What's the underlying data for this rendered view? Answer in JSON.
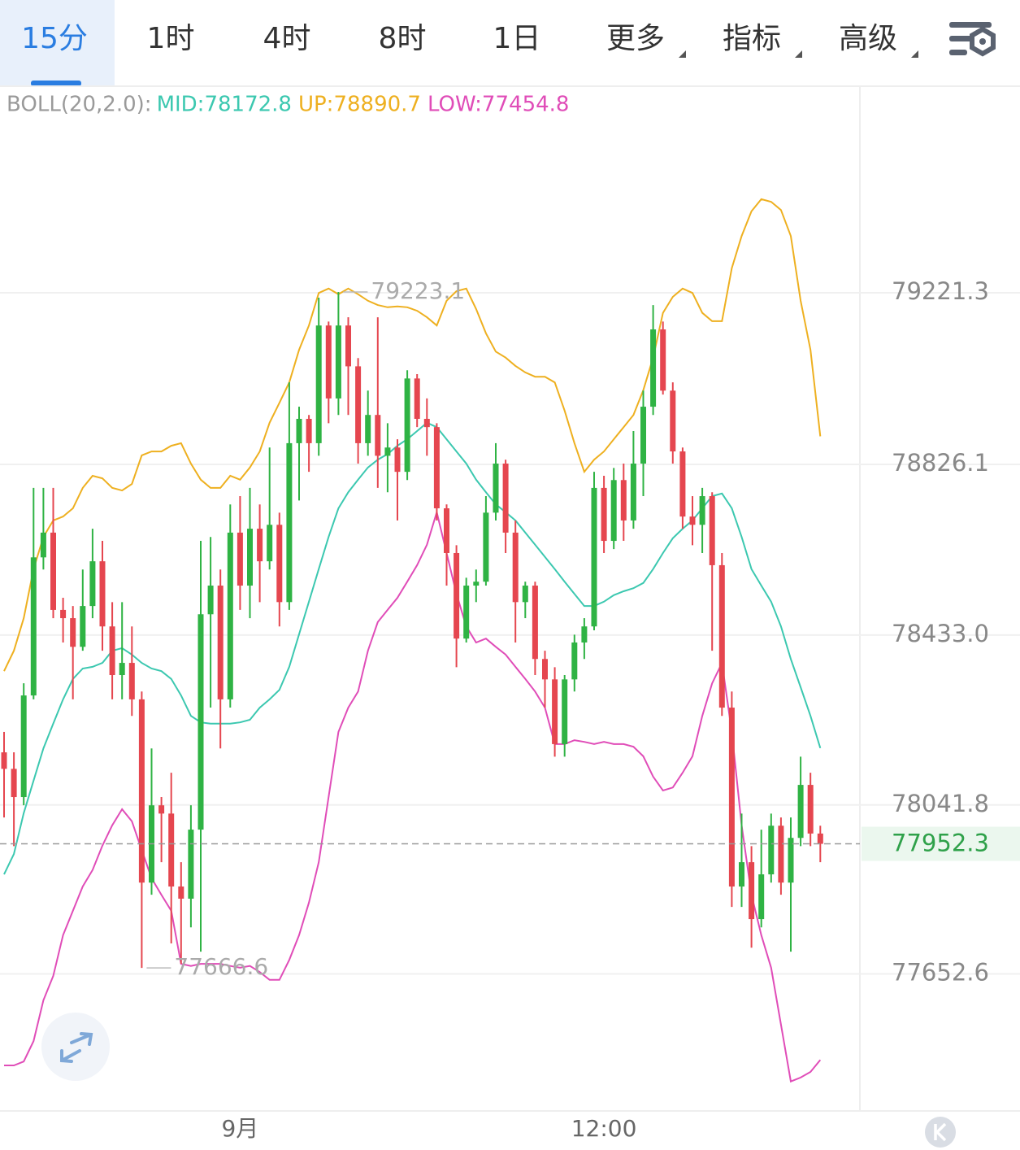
{
  "tabs": [
    "15分",
    "1时",
    "4时",
    "8时",
    "1日",
    "更多",
    "指标",
    "高级"
  ],
  "chart_data": {
    "type": "candlestick",
    "legend_title": "BOLL(20,2.0):",
    "categories": [
      null,
      null,
      null,
      null,
      null,
      null,
      null,
      null,
      null,
      null,
      null,
      null,
      null,
      null,
      null,
      null,
      null,
      null,
      null,
      null,
      null,
      null,
      null,
      null,
      "9月",
      null,
      null,
      null,
      null,
      null,
      null,
      null,
      null,
      null,
      null,
      null,
      null,
      null,
      null,
      null,
      null,
      null,
      null,
      null,
      null,
      null,
      null,
      null,
      null,
      null,
      null,
      null,
      null,
      null,
      null,
      null,
      null,
      null,
      null,
      null,
      null,
      "12:00",
      null,
      null,
      null,
      null,
      null,
      null,
      null,
      null,
      null,
      null,
      null,
      null,
      null,
      null,
      null,
      null,
      null,
      null,
      null,
      null,
      null,
      null
    ],
    "open": [
      78163,
      78125,
      78060,
      78294,
      78612,
      78669,
      78491,
      78472,
      78406,
      78500,
      78603,
      78453,
      78341,
      78369,
      78285,
      77863,
      78041,
      78022,
      77854,
      77826,
      77985,
      78481,
      78547,
      78285,
      78669,
      78547,
      78678,
      78603,
      78687,
      78509,
      78875,
      78931,
      78875,
      79146,
      78978,
      79146,
      79052,
      78875,
      78940,
      78846,
      78865,
      78809,
      79024,
      78931,
      78912,
      78725,
      78622,
      78425,
      78547,
      78556,
      78715,
      78828,
      78669,
      78509,
      78547,
      78378,
      78331,
      78182,
      78331,
      78416,
      78453,
      78772,
      78650,
      78790,
      78697,
      78828,
      78959,
      79137,
      78996,
      78856,
      78706,
      78687,
      78753,
      78594,
      78266,
      77854,
      77910,
      77779,
      77882,
      77994,
      77863,
      77966,
      78088,
      77976
    ],
    "high": [
      78210,
      78163,
      78322,
      78772,
      78772,
      78772,
      78519,
      78500,
      78584,
      78678,
      78650,
      78509,
      78509,
      78453,
      78303,
      78172,
      78060,
      78116,
      77910,
      78041,
      78650,
      78659,
      78584,
      78734,
      78753,
      78772,
      78734,
      78865,
      78715,
      79015,
      78959,
      78940,
      79210,
      79155,
      79223.1,
      79165,
      79071,
      78996,
      79165,
      78921,
      78884,
      79043,
      79034,
      78978,
      78921,
      78734,
      78640,
      78565,
      78584,
      78753,
      78875,
      78837,
      78697,
      78556,
      78556,
      78397,
      78359,
      78341,
      78434,
      78472,
      78809,
      78800,
      78818,
      78828,
      78903,
      78996,
      79193,
      79155,
      79015,
      78865,
      78753,
      78772,
      78762,
      78622,
      78303,
      78022,
      77947,
      77985,
      78022,
      78013,
      78013,
      78153,
      78116,
      77994
    ],
    "low": [
      78013,
      77947,
      78041,
      78285,
      78584,
      78472,
      78416,
      78285,
      78397,
      78472,
      78397,
      78285,
      78285,
      78247,
      77666.6,
      77835,
      77910,
      77723,
      77676,
      77760,
      77704,
      78266,
      78172,
      78266,
      78491,
      78472,
      78509,
      78584,
      78453,
      78491,
      78743,
      78809,
      78846,
      78921,
      78940,
      78940,
      78828,
      78846,
      78772,
      78762,
      78697,
      78790,
      78912,
      78846,
      78697,
      78547,
      78359,
      78416,
      78509,
      78547,
      78697,
      78622,
      78416,
      78472,
      78341,
      78266,
      78153,
      78153,
      78303,
      78378,
      78444,
      78622,
      78631,
      78650,
      78678,
      78753,
      78940,
      78987,
      78828,
      78678,
      78640,
      78622,
      78397,
      78247,
      77807,
      77807,
      77713,
      77760,
      77863,
      77835,
      77704,
      77947,
      77947,
      77910
    ],
    "close": [
      78125,
      78060,
      78294,
      78612,
      78669,
      78491,
      78472,
      78406,
      78500,
      78603,
      78453,
      78341,
      78369,
      78285,
      77863,
      78041,
      78022,
      77854,
      77826,
      77985,
      78481,
      78547,
      78285,
      78669,
      78547,
      78678,
      78603,
      78687,
      78509,
      78875,
      78931,
      78875,
      79146,
      78978,
      79146,
      79052,
      78875,
      78940,
      78846,
      78865,
      78809,
      79024,
      78931,
      78912,
      78725,
      78622,
      78425,
      78547,
      78556,
      78715,
      78828,
      78669,
      78509,
      78547,
      78378,
      78331,
      78182,
      78331,
      78416,
      78453,
      78772,
      78650,
      78790,
      78697,
      78828,
      78959,
      79137,
      78996,
      78856,
      78706,
      78687,
      78753,
      78594,
      78266,
      77854,
      77910,
      77779,
      77882,
      77994,
      77863,
      77966,
      78088,
      77976,
      77952.3
    ],
    "up_color": "#2fb344",
    "down_color": "#e5464f",
    "series": [
      {
        "name": "MID:78172.8",
        "color": "#3cc8b0",
        "values": [
          77882,
          77929,
          78023,
          78098,
          78172,
          78229,
          78285,
          78332,
          78356,
          78360,
          78369,
          78397,
          78403,
          78388,
          78369,
          78356,
          78350,
          78332,
          78294,
          78247,
          78232,
          78229,
          78229,
          78229,
          78232,
          78238,
          78266,
          78285,
          78307,
          78360,
          78435,
          78510,
          78585,
          78659,
          78725,
          78762,
          78791,
          78819,
          78837,
          78850,
          78869,
          78884,
          78903,
          78922,
          78912,
          78884,
          78856,
          78828,
          78791,
          78762,
          78734,
          78716,
          78697,
          78669,
          78641,
          78613,
          78585,
          78556,
          78528,
          78500,
          78500,
          78510,
          78525,
          78534,
          78541,
          78553,
          78585,
          78622,
          78656,
          78678,
          78697,
          78725,
          78753,
          78759,
          78725,
          78659,
          78585,
          78547,
          78510,
          78453,
          78378,
          78313,
          78247,
          78172.8
        ]
      },
      {
        "name": "UP:78890.7",
        "color": "#eeb020",
        "values": [
          78350,
          78397,
          78472,
          78585,
          78659,
          78697,
          78706,
          78725,
          78772,
          78800,
          78794,
          78772,
          78766,
          78781,
          78847,
          78856,
          78856,
          78869,
          78875,
          78828,
          78791,
          78772,
          78772,
          78800,
          78791,
          78819,
          78856,
          78922,
          78968,
          79015,
          79090,
          79146,
          79221,
          79231,
          79218,
          79231,
          79218,
          79203,
          79193,
          79188,
          79190,
          79188,
          79180,
          79165,
          79146,
          79203,
          79225,
          79231,
          79184,
          79128,
          79086,
          79072,
          79053,
          79038,
          79028,
          79028,
          79015,
          78950,
          78875,
          78809,
          78837,
          78856,
          78884,
          78912,
          78940,
          78997,
          79072,
          79175,
          79212,
          79231,
          79221,
          79175,
          79156,
          79156,
          79278,
          79352,
          79409,
          79437,
          79431,
          79412,
          79352,
          79203,
          79090,
          78890.7
        ]
      },
      {
        "name": "LOW:77454.8",
        "color": "#e04db8",
        "values": [
          77442,
          77442,
          77451,
          77498,
          77592,
          77648,
          77742,
          77798,
          77854,
          77892,
          77948,
          77995,
          78032,
          78004,
          77938,
          77873,
          77835,
          77798,
          77676,
          77671,
          77676,
          77676,
          77676,
          77671,
          77667,
          77671,
          77657,
          77639,
          77639,
          77685,
          77742,
          77817,
          77910,
          78060,
          78210,
          78266,
          78303,
          78397,
          78463,
          78491,
          78519,
          78556,
          78594,
          78641,
          78716,
          78622,
          78528,
          78453,
          78416,
          78425,
          78406,
          78388,
          78360,
          78332,
          78303,
          78266,
          78182,
          78182,
          78191,
          78187,
          78182,
          78187,
          78182,
          78182,
          78176,
          78154,
          78107,
          78075,
          78082,
          78116,
          78154,
          78247,
          78322,
          78369,
          78210,
          77995,
          77835,
          77742,
          77667,
          77536,
          77405,
          77414,
          77427,
          77454.8
        ]
      }
    ],
    "ylim": [
      77337.1,
      79695.2
    ],
    "yticks": [
      79221.3,
      78826.1,
      {
        "value": 78433,
        "label": "78433.0"
      },
      78041.8,
      77652.6
    ],
    "grid": true
  }
}
